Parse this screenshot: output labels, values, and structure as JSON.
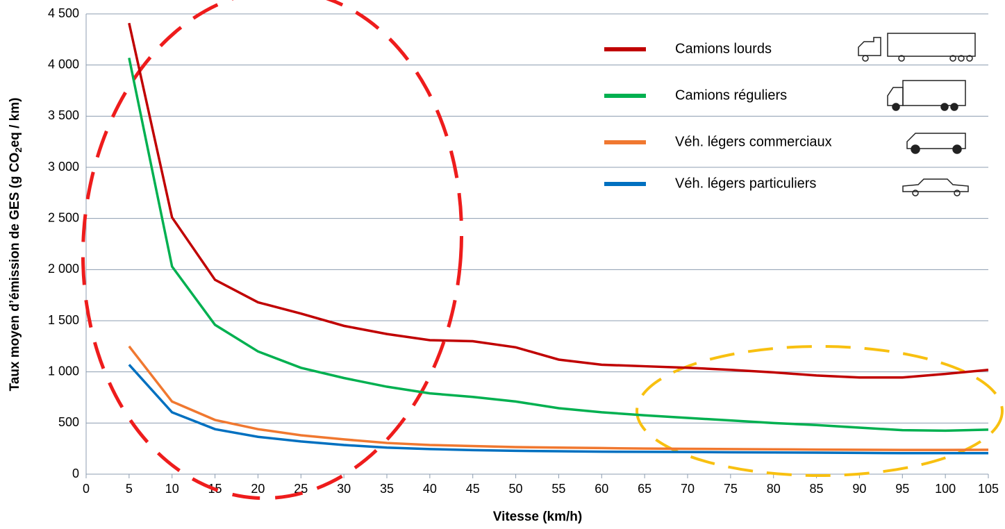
{
  "chart_data": {
    "type": "line",
    "x_label": "Vitesse (km/h)",
    "y_label": [
      "Taux moyen d’émission de GES (g CO",
      "2",
      "eq / km)"
    ],
    "x": [
      5,
      10,
      15,
      20,
      25,
      30,
      35,
      40,
      45,
      50,
      55,
      60,
      65,
      70,
      75,
      80,
      85,
      90,
      95,
      100,
      105
    ],
    "series": [
      {
        "name": "Camions lourds",
        "color": "#c00000",
        "values": [
          4410,
          2510,
          1900,
          1680,
          1570,
          1450,
          1370,
          1310,
          1300,
          1240,
          1120,
          1070,
          1055,
          1040,
          1020,
          995,
          965,
          945,
          945,
          980,
          1020
        ]
      },
      {
        "name": "Camions réguliers",
        "color": "#00b050",
        "values": [
          4070,
          2030,
          1460,
          1200,
          1040,
          940,
          855,
          790,
          755,
          710,
          645,
          605,
          575,
          550,
          525,
          500,
          480,
          455,
          430,
          425,
          435
        ]
      },
      {
        "name": "Véh. légers commerciaux",
        "color": "#f07830",
        "values": [
          1250,
          710,
          530,
          440,
          380,
          340,
          305,
          285,
          275,
          265,
          260,
          255,
          250,
          248,
          245,
          243,
          240,
          238,
          237,
          237,
          238
        ]
      },
      {
        "name": "Véh. légers particuliers",
        "color": "#0070c0",
        "values": [
          1070,
          605,
          440,
          365,
          320,
          285,
          260,
          245,
          235,
          228,
          224,
          220,
          218,
          216,
          214,
          212,
          210,
          208,
          205,
          205,
          205
        ]
      }
    ],
    "xlim": [
      0,
      105
    ],
    "xticks": [
      0,
      5,
      10,
      15,
      20,
      25,
      30,
      35,
      40,
      45,
      50,
      55,
      60,
      65,
      70,
      75,
      80,
      85,
      90,
      95,
      100,
      105
    ],
    "ylim": [
      0,
      4500
    ],
    "yticks": [
      0,
      500,
      {
        "value": 1000,
        "label": "1 000"
      },
      {
        "value": 1500,
        "label": "1 500"
      },
      {
        "value": 2000,
        "label": "2 000"
      },
      {
        "value": 2500,
        "label": "2 500"
      },
      {
        "value": 3000,
        "label": "3 000"
      },
      {
        "value": 3500,
        "label": "3 500"
      },
      {
        "value": 4000,
        "label": "4 000"
      },
      {
        "value": 4500,
        "label": "4 500"
      }
    ],
    "grid": true,
    "legend": "top-right"
  }
}
